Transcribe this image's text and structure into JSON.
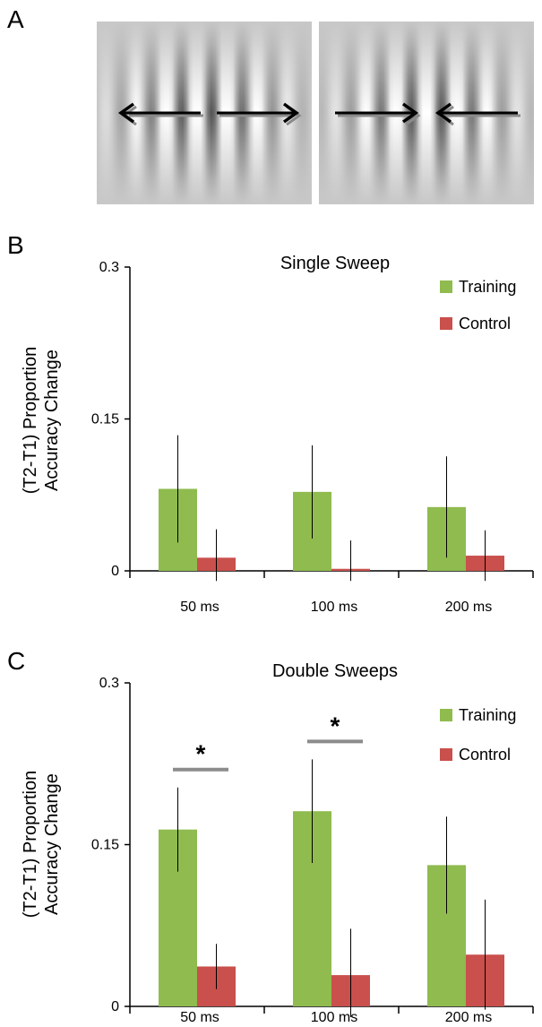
{
  "panels": {
    "a": "A",
    "b": "B",
    "c": "C"
  },
  "stimuli": [
    {
      "arrows": "outward"
    },
    {
      "arrows": "inward"
    }
  ],
  "chart_data": [
    {
      "type": "bar",
      "title": "Single Sweep",
      "ylabel": [
        "(T2-T1) Proportion",
        "Accuracy Change"
      ],
      "categories": [
        "50 ms",
        "100 ms",
        "200 ms"
      ],
      "ylim": [
        0,
        0.3
      ],
      "yticks": [
        "0",
        "0.15",
        "0.3"
      ],
      "legend_position": "top-right",
      "series": [
        {
          "name": "Training",
          "color": "#8fbb4f",
          "values": [
            0.081,
            0.078,
            0.063
          ],
          "error": [
            0.053,
            0.046,
            0.05
          ]
        },
        {
          "name": "Control",
          "color": "#c9504c",
          "values": [
            0.013,
            0.002,
            0.015
          ],
          "error": [
            0.028,
            0.028,
            0.025
          ]
        }
      ],
      "significance": []
    },
    {
      "type": "bar",
      "title": "Double Sweeps",
      "ylabel": [
        "(T2-T1) Proportion",
        "Accuracy Change"
      ],
      "categories": [
        "50 ms",
        "100 ms",
        "200 ms"
      ],
      "ylim": [
        0,
        0.3
      ],
      "yticks": [
        "0",
        "0.15",
        "0.3"
      ],
      "legend_position": "top-right",
      "series": [
        {
          "name": "Training",
          "color": "#8fbb4f",
          "values": [
            0.164,
            0.181,
            0.131
          ],
          "error": [
            0.039,
            0.048,
            0.045
          ]
        },
        {
          "name": "Control",
          "color": "#c9504c",
          "values": [
            0.037,
            0.029,
            0.048
          ],
          "error": [
            0.021,
            0.043,
            0.051
          ]
        }
      ],
      "significance": [
        {
          "category": "50 ms",
          "label": "*"
        },
        {
          "category": "100 ms",
          "label": "*"
        }
      ]
    }
  ]
}
